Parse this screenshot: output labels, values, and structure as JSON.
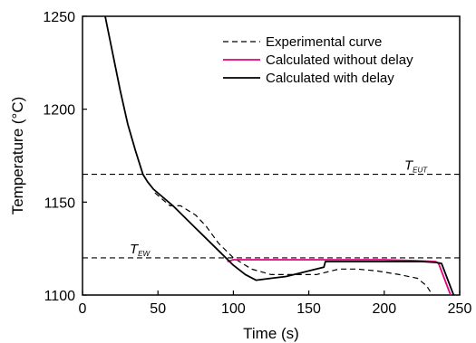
{
  "chart_data": {
    "type": "line",
    "title": "",
    "xlabel": "Time (s)",
    "ylabel": "Temperature (°C)",
    "xlim": [
      0,
      250
    ],
    "ylim": [
      1100,
      1250
    ],
    "xticks": [
      0,
      50,
      100,
      150,
      200,
      250
    ],
    "yticks": [
      1100,
      1150,
      1200,
      1250
    ],
    "grid": false,
    "legend_position": "top-right",
    "series": [
      {
        "name": "Experimental curve",
        "style": "dashed",
        "color": "#000000",
        "x": [
          48,
          58,
          65,
          75,
          82,
          90,
          100,
          112,
          125,
          140,
          155,
          160,
          170,
          182,
          195,
          210,
          222,
          228,
          232
        ],
        "y": [
          1155,
          1148,
          1148,
          1143,
          1137,
          1128,
          1120,
          1114,
          1111,
          1111,
          1111,
          1112,
          1114,
          1114,
          1113,
          1111,
          1109,
          1105,
          1100
        ]
      },
      {
        "name": "Calculated without delay",
        "style": "solid",
        "color": "#e6007e",
        "x": [
          96,
          100,
          110,
          120,
          140,
          160,
          180,
          200,
          220,
          234,
          236,
          244
        ],
        "y": [
          1118,
          1119,
          1119,
          1119,
          1119,
          1119,
          1119,
          1119,
          1118.5,
          1118,
          1117,
          1100
        ]
      },
      {
        "name": "Calculated with delay",
        "style": "solid",
        "color": "#000000",
        "x": [
          15,
          20,
          25,
          30,
          35,
          40,
          43,
          47,
          60,
          75,
          90,
          100,
          108,
          115,
          125,
          135,
          145,
          155,
          160,
          161,
          170,
          190,
          210,
          225,
          235,
          238,
          246
        ],
        "y": [
          1250,
          1230,
          1210,
          1192,
          1178,
          1165,
          1161,
          1157,
          1148,
          1136,
          1124,
          1116,
          1111,
          1108,
          1109,
          1110,
          1112,
          1114,
          1115,
          1118,
          1118,
          1118,
          1118,
          1118,
          1117.5,
          1117,
          1100
        ]
      }
    ],
    "reference_lines": [
      {
        "label_main": "T",
        "label_sub": "EUT",
        "y": 1165
      },
      {
        "label_main": "T",
        "label_sub": "EW",
        "y": 1120
      }
    ]
  }
}
